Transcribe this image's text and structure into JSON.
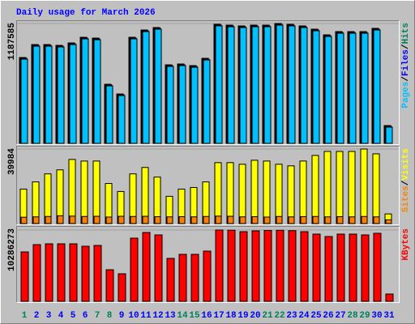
{
  "chart_data": [
    {
      "type": "bar",
      "title": "Daily usage for March 2026",
      "title_color": "#0000ff",
      "legend_separator": "/",
      "ylim": [
        0,
        1187585
      ],
      "yticks": [
        1187585
      ],
      "series": [
        {
          "name": "Hits",
          "color": "#00805c",
          "values": [
            850500,
            979000,
            979000,
            971000,
            995000,
            1051000,
            1043000,
            585700,
            489500,
            1051000,
            1123400,
            1147400,
            778300,
            786400,
            770300,
            842500,
            1180000,
            1171500,
            1163500,
            1171500,
            1171500,
            1187585,
            1179500,
            1163500,
            1131500,
            1075200,
            1107300,
            1107300,
            1107300,
            1139400,
            176500
          ]
        },
        {
          "name": "Files",
          "color": "#0000ff",
          "values": [
            842500,
            971000,
            971000,
            963000,
            987000,
            1043000,
            1035000,
            577700,
            481500,
            1043000,
            1115400,
            1139400,
            770300,
            778400,
            762300,
            834500,
            1172000,
            1163500,
            1155500,
            1163500,
            1163500,
            1179500,
            1171500,
            1155500,
            1123500,
            1067200,
            1099300,
            1099300,
            1099300,
            1131400,
            168500
          ]
        },
        {
          "name": "Pages",
          "color": "#00c0ff",
          "values": [
            834500,
            963000,
            963000,
            955000,
            979000,
            1035000,
            1027000,
            569700,
            473500,
            1035000,
            1107400,
            1131400,
            762300,
            770400,
            754300,
            826500,
            1164000,
            1155500,
            1147500,
            1155500,
            1155500,
            1171500,
            1163500,
            1147500,
            1115500,
            1059200,
            1091300,
            1091300,
            1091300,
            1123400,
            160500
          ]
        }
      ]
    },
    {
      "type": "bar",
      "legend_separator": "/",
      "ylim": [
        0,
        39984
      ],
      "yticks": [
        39984
      ],
      "series": [
        {
          "name": "Visits",
          "color": "#ffff00",
          "values": [
            18490,
            22360,
            26660,
            28810,
            34400,
            33540,
            33540,
            21500,
            17200,
            26660,
            30100,
            24940,
            14620,
            18490,
            19350,
            22360,
            32680,
            32680,
            31820,
            33970,
            33540,
            31820,
            30960,
            33540,
            36550,
            38700,
            38700,
            38700,
            39984,
            37410,
            5160
          ]
        },
        {
          "name": "Sites",
          "color": "#ff8000",
          "values": [
            3400,
            3600,
            3800,
            4200,
            4000,
            3800,
            3900,
            3500,
            3900,
            3800,
            3900,
            3700,
            3600,
            3700,
            3600,
            3800,
            4000,
            3900,
            3600,
            3700,
            3500,
            3800,
            3600,
            3700,
            3800,
            3600,
            3700,
            3600,
            3800,
            3600,
            2000
          ]
        }
      ]
    },
    {
      "type": "bar",
      "ylim": [
        0,
        10286273
      ],
      "yticks": [
        10286273
      ],
      "series": [
        {
          "name": "KBytes",
          "color": "#ff0000",
          "values": [
            7130300,
            8182300,
            8299200,
            8299200,
            8299200,
            7948500,
            8065400,
            4558700,
            3974300,
            9117400,
            9935700,
            9585000,
            6195200,
            6779600,
            6779600,
            7247200,
            10286273,
            10262000,
            10052500,
            10169400,
            10230000,
            10250000,
            10200000,
            10052500,
            9701900,
            9351200,
            9701900,
            9701900,
            9585000,
            9818800,
            1052000
          ]
        }
      ],
      "categories": [
        "1",
        "2",
        "3",
        "4",
        "5",
        "6",
        "7",
        "8",
        "9",
        "10",
        "11",
        "12",
        "13",
        "14",
        "15",
        "16",
        "17",
        "18",
        "19",
        "20",
        "21",
        "22",
        "23",
        "24",
        "25",
        "26",
        "27",
        "28",
        "29",
        "30",
        "31"
      ],
      "category_colors": [
        "#00805c",
        "#0000ff",
        "#0000ff",
        "#0000ff",
        "#0000ff",
        "#0000ff",
        "#00805c",
        "#00805c",
        "#0000ff",
        "#0000ff",
        "#0000ff",
        "#0000ff",
        "#0000ff",
        "#00805c",
        "#00805c",
        "#0000ff",
        "#0000ff",
        "#0000ff",
        "#0000ff",
        "#0000ff",
        "#00805c",
        "#00805c",
        "#0000ff",
        "#0000ff",
        "#0000ff",
        "#0000ff",
        "#0000ff",
        "#00805c",
        "#00805c",
        "#0000ff",
        "#0000ff"
      ]
    }
  ]
}
